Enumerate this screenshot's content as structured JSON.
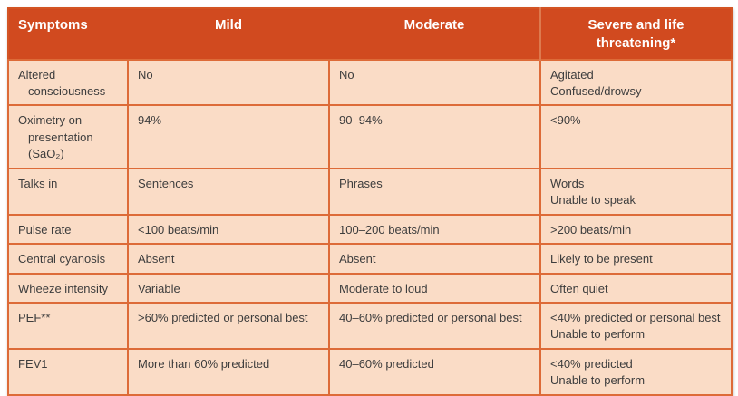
{
  "colors": {
    "header_bg": "#d14a1f",
    "header_text": "#ffffff",
    "cell_bg": "#fadcc6",
    "border": "#dd6b38",
    "text": "#3d3d3d"
  },
  "table": {
    "header": {
      "symptoms": "Symptoms",
      "mild": "Mild",
      "moderate": "Moderate",
      "severe": "Severe and life\nthreatening*"
    },
    "rows": [
      {
        "symptom": "Altered\nconsciousness",
        "mild": "No",
        "moderate": "No",
        "severe": "Agitated\nConfused/drowsy"
      },
      {
        "symptom": "Oximetry on\npresentation (SaO₂)",
        "mild": "94%",
        "moderate": "90–94%",
        "severe": "<90%"
      },
      {
        "symptom": "Talks in",
        "mild": "Sentences",
        "moderate": "Phrases",
        "severe": "Words\nUnable to speak"
      },
      {
        "symptom": "Pulse rate",
        "mild": "<100 beats/min",
        "moderate": "100–200 beats/min",
        "severe": ">200 beats/min"
      },
      {
        "symptom": "Central cyanosis",
        "mild": "Absent",
        "moderate": "Absent",
        "severe": "Likely to be present"
      },
      {
        "symptom": "Wheeze intensity",
        "mild": "Variable",
        "moderate": "Moderate to loud",
        "severe": "Often quiet"
      },
      {
        "symptom": "PEF**",
        "mild": ">60% predicted or personal best",
        "moderate": "40–60% predicted or personal best",
        "severe": "<40% predicted or personal best\nUnable to perform"
      },
      {
        "symptom": "FEV1",
        "mild": "More than 60% predicted",
        "moderate": "40–60% predicted",
        "severe": "<40% predicted\nUnable to perform"
      }
    ]
  }
}
